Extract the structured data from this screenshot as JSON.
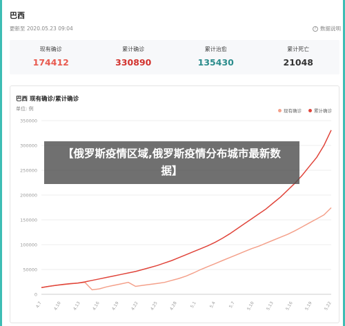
{
  "header": {
    "title": "巴西",
    "updated": "更新至 2020.05.23 09:04",
    "help_label": "数据说明"
  },
  "stats": [
    {
      "label": "现有确诊",
      "value": "174412",
      "color": "#e85a4f"
    },
    {
      "label": "累计确诊",
      "value": "330890",
      "color": "#d2322d"
    },
    {
      "label": "累计治愈",
      "value": "135430",
      "color": "#2b8c8c"
    },
    {
      "label": "累计死亡",
      "value": "21048",
      "color": "#333333"
    }
  ],
  "chart": {
    "title": "巴西 现有确诊/累计确诊",
    "unit": "单位: 例"
  },
  "banner": {
    "text": "【俄罗斯疫情区域,俄罗斯疫情分布城市最新数据】"
  },
  "chart_data": {
    "type": "line",
    "ylim": [
      0,
      350000
    ],
    "yticks": [
      "0",
      "50000",
      "100000",
      "150000",
      "200000",
      "250000",
      "300000",
      "350000"
    ],
    "xticks": [
      "4.7",
      "4.10",
      "4.13",
      "4.16",
      "4.19",
      "4.22",
      "4.25",
      "4.28",
      "5.1",
      "5.4",
      "5.7",
      "5.10",
      "5.13",
      "5.16",
      "5.19",
      "5.22"
    ],
    "grid": true,
    "legend_position": "top-right",
    "series": [
      {
        "name": "现有确诊",
        "color": "#f4a08a",
        "values": [
          13500,
          16000,
          18000,
          19500,
          21000,
          22500,
          24000,
          9000,
          11000,
          15000,
          18000,
          21000,
          24000,
          16000,
          18000,
          20000,
          22000,
          24000,
          28000,
          32000,
          37000,
          43000,
          50000,
          56000,
          62000,
          68000,
          74000,
          80000,
          86000,
          92000,
          97000,
          103000,
          109000,
          115000,
          121000,
          128000,
          136000,
          144000,
          152000,
          160000,
          174412
        ]
      },
      {
        "name": "累计确诊",
        "color": "#e0443a",
        "values": [
          13500,
          16000,
          18000,
          20000,
          21500,
          22500,
          25000,
          28000,
          31000,
          34000,
          37000,
          40000,
          43000,
          46000,
          50000,
          54000,
          58000,
          63000,
          68000,
          74000,
          80000,
          86000,
          92000,
          98000,
          105000,
          113000,
          122000,
          132000,
          142000,
          152000,
          162000,
          172000,
          184000,
          196000,
          210000,
          224000,
          240000,
          258000,
          276000,
          300000,
          330890
        ]
      }
    ]
  }
}
